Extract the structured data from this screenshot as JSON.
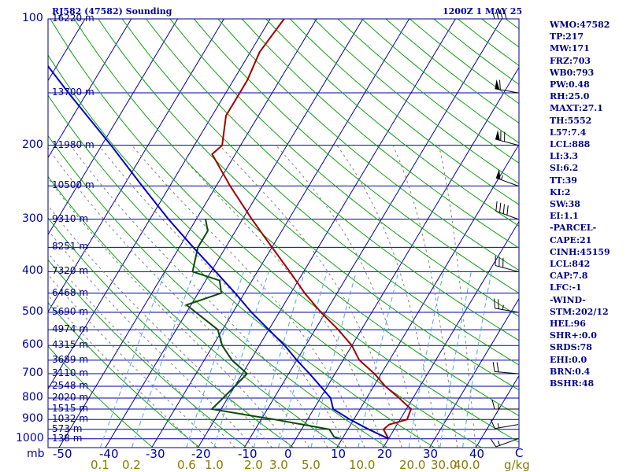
{
  "header": {
    "station_title": "RJ582 (47582) Sounding",
    "time_title": "1200Z  1 MAY 25"
  },
  "indices": [
    "WMO:47582",
    "TP:217",
    "MW:171",
    "FRZ:703",
    "WB0:793",
    "PW:0.48",
    "RH:25.0",
    "MAXT:27.1",
    "TH:5552",
    "L57:7.4",
    "LCL:888",
    "LI:3.3",
    "SI:6.2",
    "TT:39",
    "KI:2",
    "SW:38",
    "EI:1.1",
    "-PARCEL-",
    "CAPE:21",
    "CINH:45159",
    "LCL:842",
    "CAP:7.8",
    "LFC:-1",
    "-WIND-",
    "STM:202/12",
    "HEL:96",
    "SHR+:0.0",
    "SRDS:78",
    "EHI:0.0",
    "BRN:0.4",
    "BSHR:48"
  ],
  "axes": {
    "pressure_unit": "mb",
    "temp_unit": "C",
    "mixing_unit": "g/kg"
  },
  "colors": {
    "isobar": "#0000a0",
    "dry_adiabat": "#11a011",
    "temperature": "#a00000",
    "dewpoint": "#0b4a0b",
    "parcel": "#0000c0",
    "isotherm": "#0000a0",
    "mixing_ratio": "#4fa8e0",
    "moist_adiabat": "#808080",
    "wind": "#000000"
  },
  "chart_data": {
    "type": "skew-t",
    "pressure_levels": [
      100,
      200,
      300,
      400,
      500,
      600,
      700,
      800,
      900,
      1000
    ],
    "temperature_ticks": [
      -50,
      -40,
      -30,
      -20,
      -10,
      0,
      10,
      20,
      30,
      40
    ],
    "mixing_ratio_ticks": [
      "0.1",
      "0.2",
      "0.6",
      "1.0",
      "2.0",
      "3.0",
      "5.0",
      "10.0",
      "20.0",
      "30.0",
      "40.0"
    ],
    "height_labels": [
      {
        "p": 100,
        "h": "16220 m"
      },
      {
        "p": 150,
        "h": "13700 m"
      },
      {
        "p": 200,
        "h": "11980 m"
      },
      {
        "p": 250,
        "h": "10500 m"
      },
      {
        "p": 300,
        "h": "9310 m"
      },
      {
        "p": 350,
        "h": "8251 m"
      },
      {
        "p": 400,
        "h": "7320 m"
      },
      {
        "p": 450,
        "h": "6468 m"
      },
      {
        "p": 500,
        "h": "5690 m"
      },
      {
        "p": 550,
        "h": "4974 m"
      },
      {
        "p": 600,
        "h": "4315 m"
      },
      {
        "p": 650,
        "h": "3689 m"
      },
      {
        "p": 700,
        "h": "3110 m"
      },
      {
        "p": 750,
        "h": "2548 m"
      },
      {
        "p": 800,
        "h": "2020 m"
      },
      {
        "p": 850,
        "h": "1515 m"
      },
      {
        "p": 900,
        "h": "1032 m"
      },
      {
        "p": 950,
        "h": "573 m"
      },
      {
        "p": 1000,
        "h": "138 m"
      }
    ],
    "series": [
      {
        "key": "temperature",
        "points": [
          [
            1000,
            20
          ],
          [
            950,
            17.7
          ],
          [
            925,
            18.3
          ],
          [
            900,
            21.5
          ],
          [
            850,
            21
          ],
          [
            800,
            17
          ],
          [
            750,
            12.5
          ],
          [
            700,
            8.5
          ],
          [
            650,
            3.5
          ],
          [
            600,
            0
          ],
          [
            550,
            -5
          ],
          [
            500,
            -11
          ],
          [
            450,
            -17
          ],
          [
            400,
            -23
          ],
          [
            350,
            -30
          ],
          [
            300,
            -38
          ],
          [
            250,
            -47
          ],
          [
            210,
            -55
          ],
          [
            200,
            -54
          ],
          [
            170,
            -57
          ],
          [
            150,
            -57
          ],
          [
            140,
            -57
          ],
          [
            120,
            -58
          ],
          [
            100,
            -57
          ]
        ]
      },
      {
        "key": "dewpoint",
        "points": [
          [
            1000,
            9.6
          ],
          [
            990,
            8
          ],
          [
            950,
            6
          ],
          [
            900,
            -7
          ],
          [
            880,
            -13
          ],
          [
            850,
            -22
          ],
          [
            800,
            -21
          ],
          [
            750,
            -20
          ],
          [
            700,
            -19
          ],
          [
            650,
            -24
          ],
          [
            600,
            -28
          ],
          [
            550,
            -31
          ],
          [
            500,
            -38
          ],
          [
            480,
            -41
          ],
          [
            450,
            -35
          ],
          [
            420,
            -37
          ],
          [
            400,
            -44
          ],
          [
            350,
            -46
          ],
          [
            320,
            -46
          ],
          [
            300,
            -48
          ]
        ]
      },
      {
        "key": "parcel",
        "points": [
          [
            1000,
            20
          ],
          [
            950,
            14.5
          ],
          [
            900,
            9.2
          ],
          [
            850,
            4.2
          ],
          [
            800,
            2.2
          ],
          [
            750,
            -1.5
          ],
          [
            700,
            -5.5
          ],
          [
            650,
            -10
          ],
          [
            600,
            -14.5
          ],
          [
            550,
            -20
          ],
          [
            500,
            -26
          ],
          [
            450,
            -32
          ],
          [
            400,
            -39
          ],
          [
            350,
            -47
          ],
          [
            300,
            -56
          ],
          [
            250,
            -66
          ],
          [
            200,
            -78
          ],
          [
            150,
            -94
          ],
          [
            120,
            -106
          ]
        ]
      }
    ],
    "wind_barbs": [
      {
        "p": 1000,
        "dir": 250,
        "spd": 15
      },
      {
        "p": 925,
        "dir": 260,
        "spd": 15
      },
      {
        "p": 850,
        "dir": 270,
        "spd": 15
      },
      {
        "p": 700,
        "dir": 275,
        "spd": 20
      },
      {
        "p": 500,
        "dir": 280,
        "spd": 25
      },
      {
        "p": 400,
        "dir": 285,
        "spd": 30
      },
      {
        "p": 300,
        "dir": 290,
        "spd": 40
      },
      {
        "p": 250,
        "dir": 290,
        "spd": 55
      },
      {
        "p": 200,
        "dir": 285,
        "spd": 70
      },
      {
        "p": 150,
        "dir": 280,
        "spd": 60
      },
      {
        "p": 100,
        "dir": 270,
        "spd": 40
      }
    ]
  }
}
